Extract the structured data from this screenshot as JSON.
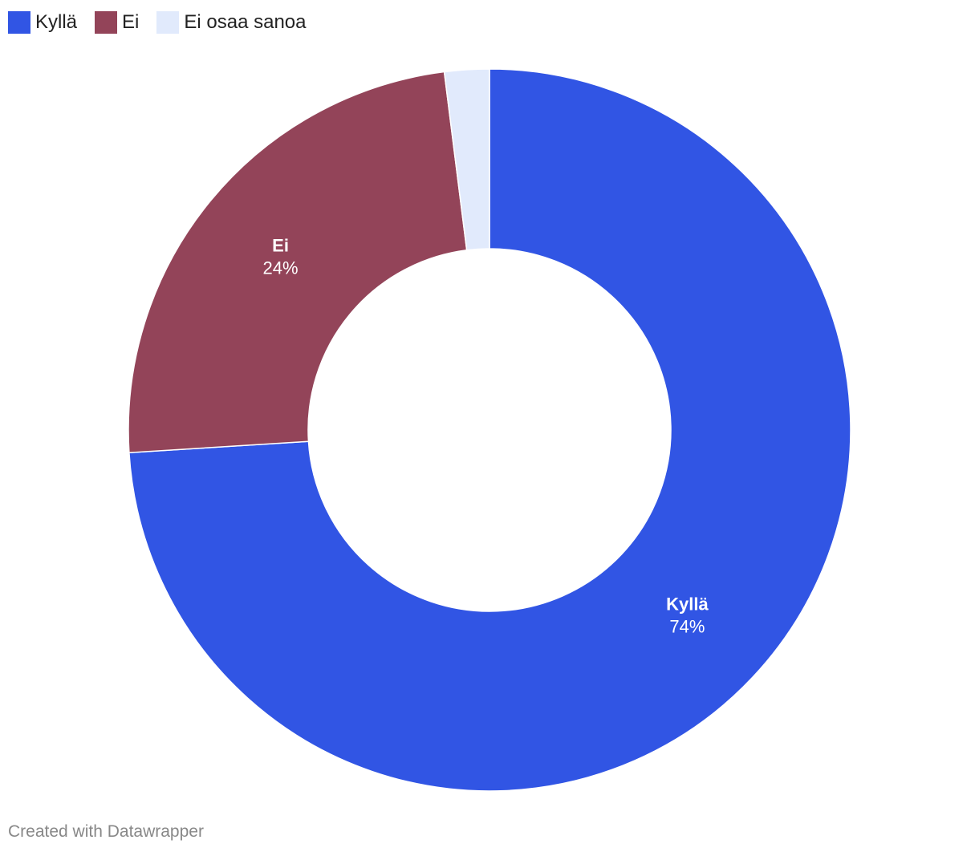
{
  "chart_data": {
    "type": "pie",
    "variant": "donut",
    "title": "",
    "categories": [
      "Kyllä",
      "Ei",
      "Ei osaa sanoa"
    ],
    "values": [
      74,
      24,
      2
    ],
    "value_labels": [
      "74%",
      "24%",
      ""
    ],
    "colors": [
      "#3155e4",
      "#934459",
      "#e1eafc"
    ],
    "legend": {
      "position": "top-left",
      "entries": [
        "Kyllä",
        "Ei",
        "Ei osaa sanoa"
      ]
    }
  },
  "credit": "Created with Datawrapper"
}
